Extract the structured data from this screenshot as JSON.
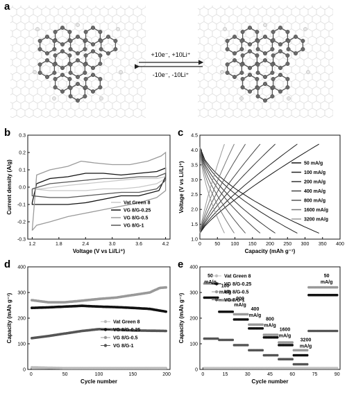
{
  "panels": {
    "a": "a",
    "b": "b",
    "c": "c",
    "d": "d",
    "e": "e"
  },
  "panel_a": {
    "forward": "+10e⁻, +10Li⁺",
    "reverse": "-10e⁻, -10Li⁺"
  },
  "chart_data": [
    {
      "id": "b",
      "type": "line",
      "xlabel": "Voltage (V vs Li/Li⁺)",
      "ylabel": "Current density (A/g)",
      "xlim": [
        1.1,
        4.3
      ],
      "ylim": [
        -0.3,
        0.3
      ],
      "xticks": [
        1.2,
        1.8,
        2.4,
        3.0,
        3.6,
        4.2
      ],
      "yticks": [
        -0.3,
        -0.2,
        -0.1,
        0.0,
        0.1,
        0.2,
        0.3
      ],
      "legend_position": "bottom-right",
      "series": [
        {
          "name": "Vat Green 8",
          "color": "#c8c8c8",
          "upper": [
            [
              1.2,
              -0.01
            ],
            [
              1.4,
              -0.01
            ],
            [
              1.7,
              0.0
            ],
            [
              2.0,
              0.01
            ],
            [
              2.4,
              0.02
            ],
            [
              2.8,
              0.03
            ],
            [
              3.2,
              0.04
            ],
            [
              3.6,
              0.05
            ],
            [
              4.0,
              0.05
            ],
            [
              4.2,
              0.06
            ]
          ],
          "lower": [
            [
              4.2,
              0.05
            ],
            [
              4.0,
              0.02
            ],
            [
              3.6,
              0.0
            ],
            [
              3.2,
              -0.01
            ],
            [
              2.8,
              -0.01
            ],
            [
              2.4,
              -0.02
            ],
            [
              2.0,
              -0.02
            ],
            [
              1.6,
              -0.02
            ],
            [
              1.2,
              -0.01
            ]
          ]
        },
        {
          "name": "VG 8/G-0.25",
          "color": "#111111",
          "upper": [
            [
              1.2,
              -0.09
            ],
            [
              1.3,
              0.02
            ],
            [
              1.6,
              0.05
            ],
            [
              2.0,
              0.06
            ],
            [
              2.4,
              0.08
            ],
            [
              2.8,
              0.08
            ],
            [
              3.2,
              0.07
            ],
            [
              3.6,
              0.08
            ],
            [
              4.0,
              0.09
            ],
            [
              4.2,
              0.11
            ]
          ],
          "lower": [
            [
              4.2,
              0.06
            ],
            [
              4.05,
              -0.02
            ],
            [
              3.6,
              -0.05
            ],
            [
              3.2,
              -0.05
            ],
            [
              2.8,
              -0.07
            ],
            [
              2.4,
              -0.09
            ],
            [
              2.0,
              -0.1
            ],
            [
              1.6,
              -0.1
            ],
            [
              1.3,
              -0.1
            ],
            [
              1.2,
              -0.1
            ]
          ]
        },
        {
          "name": "VG 8/G-0.5",
          "color": "#9a9a9a",
          "upper": [
            [
              1.2,
              -0.25
            ],
            [
              1.3,
              0.07
            ],
            [
              1.6,
              0.1
            ],
            [
              2.0,
              0.12
            ],
            [
              2.3,
              0.15
            ],
            [
              2.6,
              0.14
            ],
            [
              3.0,
              0.13
            ],
            [
              3.4,
              0.13
            ],
            [
              3.8,
              0.15
            ],
            [
              4.1,
              0.18
            ],
            [
              4.2,
              0.2
            ]
          ],
          "lower": [
            [
              4.2,
              -0.02
            ],
            [
              4.0,
              -0.06
            ],
            [
              3.6,
              -0.09
            ],
            [
              3.2,
              -0.11
            ],
            [
              2.8,
              -0.13
            ],
            [
              2.4,
              -0.15
            ],
            [
              2.0,
              -0.17
            ],
            [
              1.6,
              -0.2
            ],
            [
              1.3,
              -0.22
            ],
            [
              1.2,
              -0.25
            ]
          ]
        },
        {
          "name": "VG 8/G-1",
          "color": "#555555",
          "upper": [
            [
              1.2,
              -0.01
            ],
            [
              1.6,
              0.02
            ],
            [
              2.0,
              0.03
            ],
            [
              2.4,
              0.04
            ],
            [
              2.8,
              0.05
            ],
            [
              3.2,
              0.05
            ],
            [
              3.6,
              0.06
            ],
            [
              4.0,
              0.06
            ],
            [
              4.2,
              0.08
            ]
          ],
          "lower": [
            [
              4.2,
              0.04
            ],
            [
              4.0,
              -0.01
            ],
            [
              3.6,
              -0.03
            ],
            [
              3.2,
              -0.03
            ],
            [
              2.8,
              -0.04
            ],
            [
              2.4,
              -0.05
            ],
            [
              2.0,
              -0.06
            ],
            [
              1.6,
              -0.06
            ],
            [
              1.2,
              -0.05
            ]
          ]
        }
      ]
    },
    {
      "id": "c",
      "type": "line",
      "xlabel": "Capacity (mAh g⁻¹)",
      "ylabel": "Voltage (V vs Li/Li⁺)",
      "xlim": [
        0,
        400
      ],
      "ylim": [
        1,
        4.5
      ],
      "xticks": [
        0,
        50,
        100,
        150,
        200,
        250,
        300,
        350,
        400
      ],
      "yticks": [
        1.0,
        1.5,
        2.0,
        2.5,
        3.0,
        3.5,
        4.0,
        4.5
      ],
      "legend_position": "right",
      "series": [
        {
          "name": "50 mA/g",
          "color": "#111111",
          "capacity": 340
        },
        {
          "name": "100 mA/g",
          "color": "#222222",
          "capacity": 278
        },
        {
          "name": "200 mA/g",
          "color": "#333333",
          "capacity": 215
        },
        {
          "name": "400 mA/g",
          "color": "#444444",
          "capacity": 172
        },
        {
          "name": "800 mA/g",
          "color": "#555555",
          "capacity": 130
        },
        {
          "name": "1600 mA/g",
          "color": "#777777",
          "capacity": 98
        },
        {
          "name": "3200 mA/g",
          "color": "#999999",
          "capacity": 70
        }
      ]
    },
    {
      "id": "d",
      "type": "scatter",
      "xlabel": "Cycle number",
      "ylabel": "Capacity (mAh g⁻¹)",
      "xlim": [
        -5,
        205
      ],
      "ylim": [
        0,
        400
      ],
      "xticks": [
        0,
        50,
        100,
        150,
        200
      ],
      "yticks": [
        0,
        100,
        200,
        300,
        400
      ],
      "legend_position": "bottom-right",
      "series": [
        {
          "name": "Vat Green 8",
          "color": "#bbbbbb",
          "points": [
            [
              1,
              8
            ],
            [
              50,
              5
            ],
            [
              100,
              5
            ],
            [
              150,
              5
            ],
            [
              200,
              5
            ]
          ]
        },
        {
          "name": "VG 8/G-0.25",
          "color": "#111111",
          "points": [
            [
              1,
              240
            ],
            [
              25,
              242
            ],
            [
              50,
              245
            ],
            [
              75,
              248
            ],
            [
              100,
              245
            ],
            [
              125,
              243
            ],
            [
              150,
              240
            ],
            [
              175,
              236
            ],
            [
              200,
              225
            ]
          ]
        },
        {
          "name": "VG 8/G-0.5",
          "color": "#999999",
          "points": [
            [
              1,
              270
            ],
            [
              25,
              262
            ],
            [
              50,
              262
            ],
            [
              75,
              268
            ],
            [
              100,
              275
            ],
            [
              125,
              280
            ],
            [
              150,
              290
            ],
            [
              175,
              300
            ],
            [
              190,
              318
            ],
            [
              200,
              320
            ]
          ]
        },
        {
          "name": "VG 8/G-1",
          "color": "#555555",
          "points": [
            [
              1,
              122
            ],
            [
              25,
              130
            ],
            [
              50,
              140
            ],
            [
              75,
              150
            ],
            [
              100,
              157
            ],
            [
              125,
              155
            ],
            [
              150,
              152
            ],
            [
              175,
              151
            ],
            [
              200,
              150
            ]
          ]
        }
      ]
    },
    {
      "id": "e",
      "type": "scatter",
      "xlabel": "Cycle number",
      "ylabel": "Capacity (mAh g⁻¹)",
      "xlim": [
        -2,
        92
      ],
      "ylim": [
        0,
        400
      ],
      "xticks": [
        0,
        15,
        30,
        45,
        60,
        75,
        90
      ],
      "yticks": [
        0,
        100,
        200,
        300,
        400
      ],
      "legend_position": "top-left",
      "rate_labels": [
        {
          "value": "50",
          "unit": "mA/g",
          "x": 5,
          "y": 360
        },
        {
          "value": "100",
          "unit": "mA/g",
          "x": 15,
          "y": 320
        },
        {
          "value": "200",
          "unit": "mA/g",
          "x": 25,
          "y": 270
        },
        {
          "value": "400",
          "unit": "mA/g",
          "x": 35,
          "y": 230
        },
        {
          "value": "800",
          "unit": "mA/g",
          "x": 45,
          "y": 190
        },
        {
          "value": "1600",
          "unit": "mA/g",
          "x": 55,
          "y": 150
        },
        {
          "value": "3200",
          "unit": "mA/g",
          "x": 69,
          "y": 110
        },
        {
          "value": "50",
          "unit": "mA/g",
          "x": 83,
          "y": 360
        }
      ],
      "series": [
        {
          "name": "Vat Green 8",
          "color": "#c0c0c0",
          "levels": [
            5,
            5,
            5,
            5,
            5,
            5,
            5,
            5
          ]
        },
        {
          "name": "VG 8/G-0.25",
          "color": "#111111",
          "levels": [
            280,
            225,
            195,
            160,
            125,
            95,
            55,
            290
          ]
        },
        {
          "name": "VG 8/G-0.5",
          "color": "#999999",
          "levels": [
            335,
            270,
            215,
            175,
            135,
            105,
            75,
            320
          ]
        },
        {
          "name": "VG 8/G-1",
          "color": "#555555",
          "levels": [
            120,
            115,
            95,
            75,
            55,
            40,
            20,
            150
          ]
        }
      ]
    }
  ]
}
